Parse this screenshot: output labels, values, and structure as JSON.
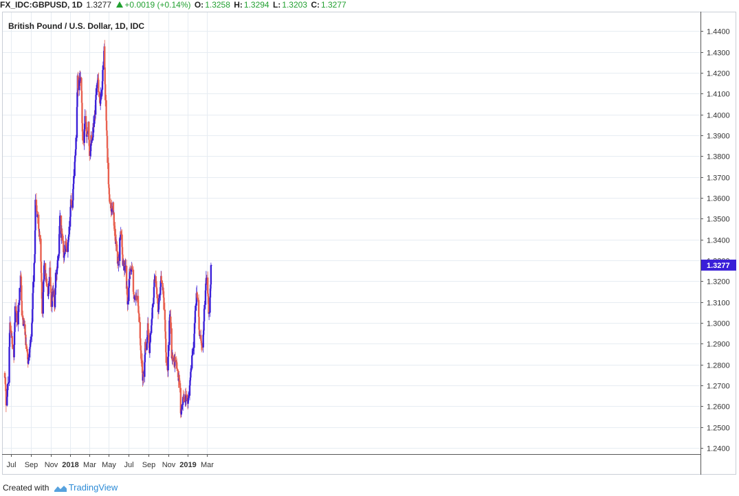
{
  "header": {
    "symbol": "FX_IDC:GBPUSD, 1D",
    "last": "1.3277",
    "change": "+0.0019 (+0.14%)",
    "o_label": "O:",
    "o_value": "1.3258",
    "h_label": "H:",
    "h_value": "1.3294",
    "l_label": "L:",
    "l_value": "1.3203",
    "c_label": "C:",
    "c_value": "1.3277"
  },
  "footer": {
    "created_with": "Created with",
    "brand": "TradingView"
  },
  "colors": {
    "up": "#3a1fd8",
    "down": "#e8604f",
    "grid": "#e6ecf2",
    "axis": "#000000",
    "price_label_bg": "#3a1fd8"
  },
  "chart_data": {
    "type": "candlestick",
    "title": "British Pound / U.S. Dollar, 1D, IDC",
    "y_axis": {
      "side": "right",
      "range": [
        1.237,
        1.449
      ],
      "ticks": [
        "1.2400",
        "1.2500",
        "1.2600",
        "1.2700",
        "1.2800",
        "1.2900",
        "1.3000",
        "1.3100",
        "1.3200",
        "1.3300",
        "1.3400",
        "1.3500",
        "1.3600",
        "1.3700",
        "1.3800",
        "1.3900",
        "1.4000",
        "1.4100",
        "1.4200",
        "1.4300",
        "1.4400"
      ]
    },
    "x_axis": {
      "ticks": [
        {
          "label": "Jul",
          "date": "2017-07-01",
          "bold": false
        },
        {
          "label": "Sep",
          "date": "2017-09-01",
          "bold": false
        },
        {
          "label": "Nov",
          "date": "2017-11-01",
          "bold": false
        },
        {
          "label": "2018",
          "date": "2018-01-01",
          "bold": true
        },
        {
          "label": "Mar",
          "date": "2018-03-01",
          "bold": false
        },
        {
          "label": "May",
          "date": "2018-05-01",
          "bold": false
        },
        {
          "label": "Jul",
          "date": "2018-07-01",
          "bold": false
        },
        {
          "label": "Sep",
          "date": "2018-09-01",
          "bold": false
        },
        {
          "label": "Nov",
          "date": "2018-11-01",
          "bold": false
        },
        {
          "label": "2019",
          "date": "2019-01-01",
          "bold": true
        },
        {
          "label": "Mar",
          "date": "2019-03-01",
          "bold": false
        }
      ]
    },
    "grid": true,
    "last_price_label": "1.3277",
    "close_path": [
      [
        "2017-06-12",
        1.276
      ],
      [
        "2017-06-16",
        1.262
      ],
      [
        "2017-06-23",
        1.273
      ],
      [
        "2017-06-28",
        1.299
      ],
      [
        "2017-07-04",
        1.293
      ],
      [
        "2017-07-10",
        1.284
      ],
      [
        "2017-07-14",
        1.307
      ],
      [
        "2017-07-21",
        1.3
      ],
      [
        "2017-07-28",
        1.315
      ],
      [
        "2017-08-01",
        1.324
      ],
      [
        "2017-08-04",
        1.303
      ],
      [
        "2017-08-11",
        1.299
      ],
      [
        "2017-08-18",
        1.287
      ],
      [
        "2017-08-24",
        1.281
      ],
      [
        "2017-08-30",
        1.292
      ],
      [
        "2017-09-05",
        1.299
      ],
      [
        "2017-09-08",
        1.321
      ],
      [
        "2017-09-13",
        1.331
      ],
      [
        "2017-09-15",
        1.358
      ],
      [
        "2017-09-20",
        1.353
      ],
      [
        "2017-09-25",
        1.346
      ],
      [
        "2017-09-29",
        1.34
      ],
      [
        "2017-10-03",
        1.323
      ],
      [
        "2017-10-06",
        1.306
      ],
      [
        "2017-10-10",
        1.32
      ],
      [
        "2017-10-13",
        1.328
      ],
      [
        "2017-10-18",
        1.321
      ],
      [
        "2017-10-25",
        1.313
      ],
      [
        "2017-10-30",
        1.325
      ],
      [
        "2017-11-03",
        1.308
      ],
      [
        "2017-11-08",
        1.316
      ],
      [
        "2017-11-14",
        1.307
      ],
      [
        "2017-11-17",
        1.323
      ],
      [
        "2017-11-21",
        1.326
      ],
      [
        "2017-11-27",
        1.335
      ],
      [
        "2017-11-30",
        1.352
      ],
      [
        "2017-12-04",
        1.343
      ],
      [
        "2017-12-08",
        1.34
      ],
      [
        "2017-12-12",
        1.333
      ],
      [
        "2017-12-18",
        1.338
      ],
      [
        "2017-12-22",
        1.333
      ],
      [
        "2017-12-28",
        1.341
      ],
      [
        "2018-01-03",
        1.359
      ],
      [
        "2018-01-08",
        1.356
      ],
      [
        "2018-01-12",
        1.372
      ],
      [
        "2018-01-16",
        1.378
      ],
      [
        "2018-01-19",
        1.388
      ],
      [
        "2018-01-24",
        1.417
      ],
      [
        "2018-01-26",
        1.412
      ],
      [
        "2018-01-31",
        1.419
      ],
      [
        "2018-02-05",
        1.413
      ],
      [
        "2018-02-08",
        1.39
      ],
      [
        "2018-02-13",
        1.386
      ],
      [
        "2018-02-16",
        1.401
      ],
      [
        "2018-02-22",
        1.389
      ],
      [
        "2018-02-27",
        1.395
      ],
      [
        "2018-03-02",
        1.378
      ],
      [
        "2018-03-07",
        1.388
      ],
      [
        "2018-03-12",
        1.39
      ],
      [
        "2018-03-15",
        1.396
      ],
      [
        "2018-03-20",
        1.402
      ],
      [
        "2018-03-23",
        1.413
      ],
      [
        "2018-03-28",
        1.417
      ],
      [
        "2018-04-03",
        1.404
      ],
      [
        "2018-04-06",
        1.408
      ],
      [
        "2018-04-10",
        1.411
      ],
      [
        "2018-04-13",
        1.424
      ],
      [
        "2018-04-17",
        1.431
      ],
      [
        "2018-04-20",
        1.407
      ],
      [
        "2018-04-24",
        1.394
      ],
      [
        "2018-04-27",
        1.378
      ],
      [
        "2018-05-02",
        1.36
      ],
      [
        "2018-05-08",
        1.354
      ],
      [
        "2018-05-14",
        1.356
      ],
      [
        "2018-05-18",
        1.346
      ],
      [
        "2018-05-24",
        1.337
      ],
      [
        "2018-05-30",
        1.327
      ],
      [
        "2018-06-04",
        1.339
      ],
      [
        "2018-06-08",
        1.343
      ],
      [
        "2018-06-13",
        1.33
      ],
      [
        "2018-06-18",
        1.326
      ],
      [
        "2018-06-22",
        1.326
      ],
      [
        "2018-06-28",
        1.31
      ],
      [
        "2018-07-04",
        1.323
      ],
      [
        "2018-07-09",
        1.328
      ],
      [
        "2018-07-13",
        1.325
      ],
      [
        "2018-07-18",
        1.31
      ],
      [
        "2018-07-24",
        1.313
      ],
      [
        "2018-07-30",
        1.311
      ],
      [
        "2018-08-03",
        1.3
      ],
      [
        "2018-08-09",
        1.284
      ],
      [
        "2018-08-14",
        1.274
      ],
      [
        "2018-08-17",
        1.274
      ],
      [
        "2018-08-22",
        1.289
      ],
      [
        "2018-08-27",
        1.288
      ],
      [
        "2018-08-30",
        1.298
      ],
      [
        "2018-09-04",
        1.287
      ],
      [
        "2018-09-07",
        1.294
      ],
      [
        "2018-09-12",
        1.304
      ],
      [
        "2018-09-17",
        1.314
      ],
      [
        "2018-09-21",
        1.324
      ],
      [
        "2018-09-26",
        1.317
      ],
      [
        "2018-10-01",
        1.304
      ],
      [
        "2018-10-05",
        1.313
      ],
      [
        "2018-10-10",
        1.323
      ],
      [
        "2018-10-16",
        1.316
      ],
      [
        "2018-10-22",
        1.301
      ],
      [
        "2018-10-26",
        1.283
      ],
      [
        "2018-10-31",
        1.278
      ],
      [
        "2018-11-05",
        1.303
      ],
      [
        "2018-11-08",
        1.303
      ],
      [
        "2018-11-12",
        1.285
      ],
      [
        "2018-11-16",
        1.283
      ],
      [
        "2018-11-20",
        1.281
      ],
      [
        "2018-11-26",
        1.283
      ],
      [
        "2018-11-30",
        1.275
      ],
      [
        "2018-12-05",
        1.274
      ],
      [
        "2018-12-10",
        1.256
      ],
      [
        "2018-12-13",
        1.26
      ],
      [
        "2018-12-18",
        1.264
      ],
      [
        "2018-12-21",
        1.264
      ],
      [
        "2018-12-27",
        1.264
      ],
      [
        "2019-01-03",
        1.262
      ],
      [
        "2019-01-08",
        1.272
      ],
      [
        "2019-01-14",
        1.285
      ],
      [
        "2019-01-18",
        1.288
      ],
      [
        "2019-01-23",
        1.301
      ],
      [
        "2019-01-28",
        1.315
      ],
      [
        "2019-02-01",
        1.309
      ],
      [
        "2019-02-07",
        1.294
      ],
      [
        "2019-02-13",
        1.287
      ],
      [
        "2019-02-18",
        1.293
      ],
      [
        "2019-02-21",
        1.305
      ],
      [
        "2019-02-26",
        1.319
      ],
      [
        "2019-03-01",
        1.322
      ],
      [
        "2019-03-05",
        1.311
      ],
      [
        "2019-03-08",
        1.303
      ],
      [
        "2019-03-12",
        1.315
      ],
      [
        "2019-03-14",
        1.326
      ],
      [
        "2019-03-15",
        1.3277
      ]
    ]
  }
}
